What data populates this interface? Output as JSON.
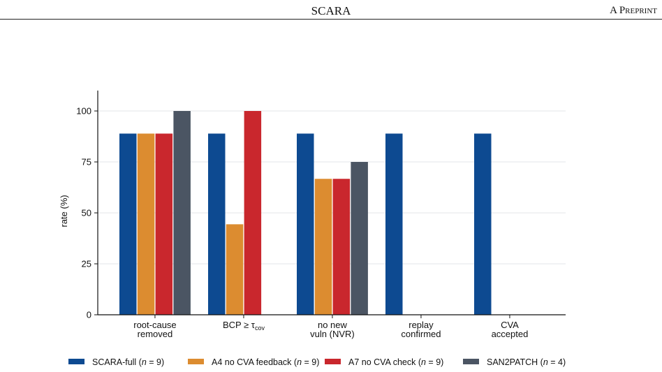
{
  "running_head": {
    "title": "SCARA",
    "right": "A Preprint"
  },
  "chart_data": {
    "type": "bar",
    "title": "",
    "xlabel": "",
    "ylabel": "rate (%)",
    "ylim": [
      0,
      110
    ],
    "yticks": [
      0,
      25,
      50,
      75,
      100
    ],
    "grid": "horizontal",
    "legend_position": "bottom",
    "categories": [
      [
        "root-cause",
        "removed"
      ],
      [
        "BCP ≥ τcov"
      ],
      [
        "no new",
        "vuln (NVR)"
      ],
      [
        "replay",
        "confirmed"
      ],
      [
        "CVA",
        "accepted"
      ]
    ],
    "series": [
      {
        "name": "SCARA-full",
        "n_label": "n = 9",
        "color": "#0d4a91",
        "values": [
          88.9,
          88.9,
          88.9,
          88.9,
          88.9
        ]
      },
      {
        "name": "A4 no CVA feedback",
        "n_label": "n = 9",
        "color": "#dc8c30",
        "values": [
          88.9,
          44.4,
          66.7,
          0,
          0
        ]
      },
      {
        "name": "A7 no CVA check",
        "n_label": "n = 9",
        "color": "#c9272d",
        "values": [
          88.9,
          100,
          66.7,
          0,
          0
        ]
      },
      {
        "name": "SAN2PATCH",
        "n_label": "n = 4",
        "color": "#4b5563",
        "values": [
          100,
          0,
          75,
          0,
          0
        ]
      }
    ]
  }
}
